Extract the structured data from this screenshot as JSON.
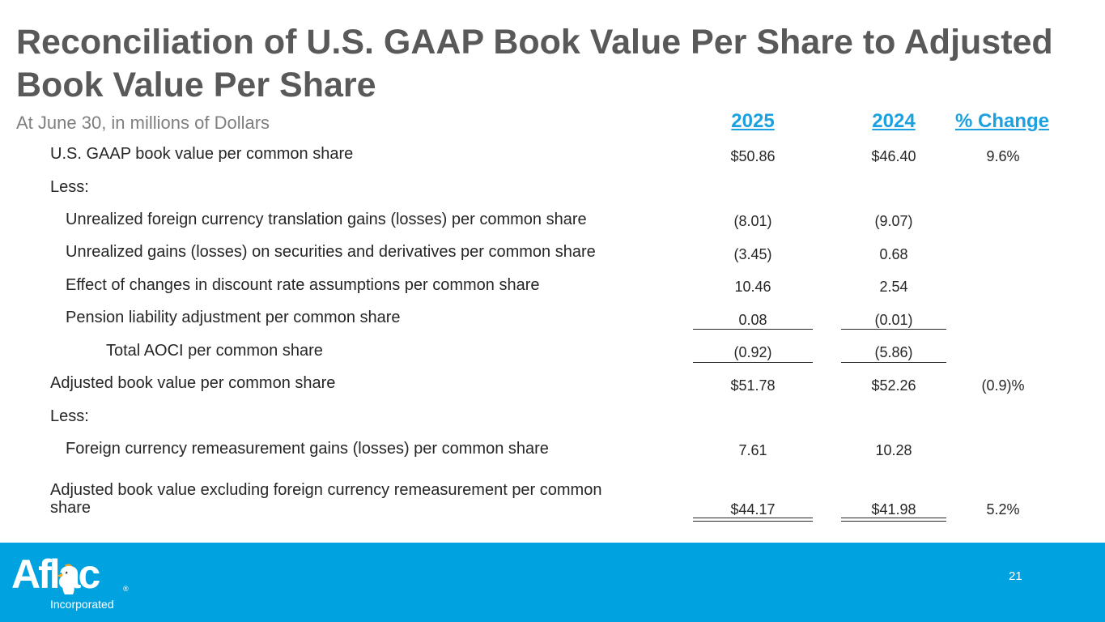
{
  "title": "Reconciliation of U.S. GAAP Book Value Per Share to Adjusted Book Value Per Share",
  "subtitle": "At June 30, in millions of Dollars",
  "columns": {
    "y2025": "2025",
    "y2024": "2024",
    "change": "% Change"
  },
  "rows": [
    {
      "label": "U.S. GAAP book value per common share",
      "v2025": "$50.86",
      "v2024": "$46.40",
      "change": "9.6%"
    },
    {
      "label": "Less:",
      "v2025": "",
      "v2024": "",
      "change": ""
    },
    {
      "label": "Unrealized foreign currency translation gains (losses) per common share",
      "v2025": "(8.01)",
      "v2024": "(9.07)",
      "change": ""
    },
    {
      "label": "Unrealized gains (losses) on securities and derivatives per common share",
      "v2025": "(3.45)",
      "v2024": "0.68",
      "change": ""
    },
    {
      "label": "Effect of changes in discount rate assumptions per common share",
      "v2025": "10.46",
      "v2024": "2.54",
      "change": ""
    },
    {
      "label": "Pension liability adjustment per common share",
      "v2025": "0.08",
      "v2024": "(0.01)",
      "change": ""
    },
    {
      "label": "Total AOCI per common share",
      "v2025": "(0.92)",
      "v2024": "(5.86)",
      "change": ""
    },
    {
      "label": "Adjusted book value per common share",
      "v2025": "$51.78",
      "v2024": "$52.26",
      "change": "(0.9)%"
    },
    {
      "label": "Less:",
      "v2025": "",
      "v2024": "",
      "change": ""
    },
    {
      "label": "Foreign currency remeasurement gains (losses) per common share",
      "v2025": "7.61",
      "v2024": "10.28",
      "change": ""
    },
    {
      "label": "Adjusted book value excluding foreign currency remeasurement per common",
      "label2": "share",
      "v2025": "$44.17",
      "v2024": "$41.98",
      "change": "5.2%"
    }
  ],
  "footer": {
    "logo_text": "Aflac",
    "logo_sub": "Incorporated",
    "registered": "®",
    "page_number": "21",
    "bar_color": "#00a3e0"
  }
}
